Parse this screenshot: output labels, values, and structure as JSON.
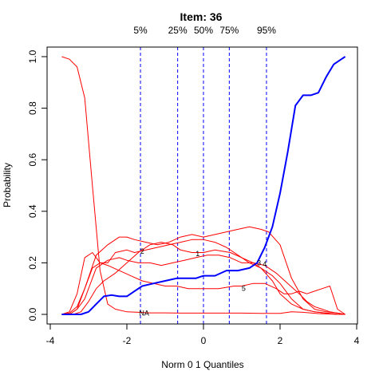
{
  "chart_data": {
    "type": "line",
    "title": "Item:  36",
    "xlabel": "Norm 0 1 Quantiles",
    "ylabel": "Probability",
    "xlim": [
      -4,
      4
    ],
    "ylim": [
      0,
      1
    ],
    "xticks": [
      "-4",
      "-2",
      "0",
      "2",
      "4"
    ],
    "yticks": [
      "0.0",
      "0.2",
      "0.4",
      "0.6",
      "0.8",
      "1.0"
    ],
    "quantiles": [
      {
        "label": "5%",
        "x": -1.645
      },
      {
        "label": "25%",
        "x": -0.674
      },
      {
        "label": "50%",
        "x": 0
      },
      {
        "label": "75%",
        "x": 0.674
      },
      {
        "label": "95%",
        "x": 1.645
      }
    ],
    "colors": {
      "distractor": "#ff0000",
      "key": "#0000ff",
      "quantile_line": "#0000ff"
    },
    "series": [
      {
        "name": "NA",
        "label_at": [
          -1.55,
          0.005
        ],
        "key": false,
        "x": [
          -3.7,
          -3.5,
          -3.3,
          -3.1,
          -2.9,
          -2.7,
          -2.5,
          -2.3,
          -2.0,
          -1.7,
          -1.4,
          -1.0,
          -0.6,
          0,
          0.5,
          1.0,
          1.5,
          2.0,
          2.3,
          2.6,
          3.0,
          3.4,
          3.7
        ],
        "y": [
          1.0,
          0.99,
          0.96,
          0.84,
          0.5,
          0.17,
          0.04,
          0.02,
          0.01,
          0.008,
          0.006,
          0.006,
          0.005,
          0.005,
          0.005,
          0.005,
          0.004,
          0.004,
          0.01,
          0.008,
          0.003,
          0.001,
          0.0
        ]
      },
      {
        "name": "1",
        "label_at": [
          -0.15,
          0.235
        ],
        "key": false,
        "x": [
          -3.7,
          -3.4,
          -3.2,
          -3.0,
          -2.8,
          -2.6,
          -2.3,
          -2.0,
          -1.7,
          -1.4,
          -1.1,
          -0.8,
          -0.6,
          -0.3,
          0,
          0.3,
          0.7,
          1.0,
          1.3,
          1.5,
          1.8,
          2.0,
          2.3,
          2.6,
          2.9,
          3.2,
          3.5,
          3.7
        ],
        "y": [
          0.0,
          0.0,
          0.01,
          0.05,
          0.1,
          0.13,
          0.16,
          0.2,
          0.24,
          0.27,
          0.28,
          0.27,
          0.25,
          0.24,
          0.24,
          0.25,
          0.24,
          0.22,
          0.2,
          0.18,
          0.15,
          0.12,
          0.06,
          0.02,
          0.01,
          0.005,
          0.0,
          0.0
        ]
      },
      {
        "name": "2",
        "label_at": [
          -1.6,
          0.245
        ],
        "key": false,
        "x": [
          -3.7,
          -3.5,
          -3.3,
          -3.1,
          -2.9,
          -2.7,
          -2.5,
          -2.3,
          -2.0,
          -1.8,
          -1.5,
          -1.2,
          -0.9,
          -0.6,
          -0.3,
          0,
          0.3,
          0.6,
          0.9,
          1.2,
          1.5,
          1.8,
          2.0,
          2.3,
          2.6,
          2.9,
          3.2,
          3.5,
          3.7
        ],
        "y": [
          0.0,
          0.01,
          0.08,
          0.22,
          0.24,
          0.2,
          0.2,
          0.24,
          0.25,
          0.24,
          0.25,
          0.26,
          0.27,
          0.28,
          0.29,
          0.29,
          0.28,
          0.26,
          0.23,
          0.2,
          0.18,
          0.13,
          0.08,
          0.04,
          0.02,
          0.01,
          0.005,
          0.0,
          0.0
        ]
      },
      {
        "name": "3",
        "label_at": [
          1.45,
          0.2
        ],
        "key": false,
        "x": [
          -3.7,
          -3.5,
          -3.3,
          -3.1,
          -2.8,
          -2.5,
          -2.2,
          -2.0,
          -1.8,
          -1.5,
          -1.2,
          -0.9,
          -0.6,
          -0.3,
          0,
          0.3,
          0.6,
          0.9,
          1.2,
          1.5,
          1.7,
          2.0,
          2.3,
          2.6,
          2.9,
          3.2,
          3.5,
          3.7
        ],
        "y": [
          0.0,
          0.005,
          0.03,
          0.1,
          0.23,
          0.27,
          0.3,
          0.3,
          0.29,
          0.28,
          0.27,
          0.28,
          0.3,
          0.31,
          0.3,
          0.31,
          0.32,
          0.33,
          0.34,
          0.33,
          0.32,
          0.27,
          0.14,
          0.06,
          0.02,
          0.01,
          0.005,
          0.0
        ]
      },
      {
        "name": "4",
        "label_at": [
          1.6,
          0.195
        ],
        "key": false,
        "x": [
          -3.7,
          -3.5,
          -3.3,
          -3.1,
          -2.8,
          -2.5,
          -2.2,
          -2.0,
          -1.7,
          -1.4,
          -1.1,
          -0.8,
          -0.5,
          -0.2,
          0.1,
          0.4,
          0.7,
          1.0,
          1.3,
          1.6,
          1.9,
          2.2,
          2.5,
          2.7,
          2.9,
          3.1,
          3.3,
          3.5,
          3.7
        ],
        "y": [
          0.0,
          0.0,
          0.02,
          0.06,
          0.18,
          0.21,
          0.22,
          0.21,
          0.2,
          0.2,
          0.19,
          0.2,
          0.21,
          0.22,
          0.23,
          0.23,
          0.22,
          0.2,
          0.2,
          0.19,
          0.16,
          0.12,
          0.08,
          0.05,
          0.03,
          0.02,
          0.01,
          0.005,
          0.0
        ]
      },
      {
        "name": "5",
        "label_at": [
          1.05,
          0.1
        ],
        "key": false,
        "x": [
          -3.7,
          -3.5,
          -3.3,
          -3.1,
          -2.9,
          -2.7,
          -2.5,
          -2.2,
          -1.9,
          -1.6,
          -1.3,
          -1.0,
          -0.7,
          -0.4,
          0,
          0.4,
          0.8,
          1.0,
          1.3,
          1.6,
          1.9,
          2.1,
          2.3,
          2.5,
          2.7,
          2.9,
          3.1,
          3.3,
          3.5,
          3.7
        ],
        "y": [
          0.0,
          0.0,
          0.02,
          0.1,
          0.18,
          0.2,
          0.19,
          0.17,
          0.15,
          0.13,
          0.12,
          0.11,
          0.11,
          0.1,
          0.1,
          0.1,
          0.11,
          0.11,
          0.12,
          0.12,
          0.1,
          0.08,
          0.08,
          0.09,
          0.08,
          0.09,
          0.1,
          0.11,
          0.02,
          0.0
        ]
      },
      {
        "name": "key",
        "key": true,
        "x": [
          -3.7,
          -3.4,
          -3.2,
          -3.0,
          -2.8,
          -2.6,
          -2.4,
          -2.2,
          -2.0,
          -1.8,
          -1.6,
          -1.3,
          -1.0,
          -0.7,
          -0.4,
          -0.2,
          0,
          0.3,
          0.6,
          0.9,
          1.2,
          1.4,
          1.6,
          1.8,
          2.0,
          2.2,
          2.4,
          2.6,
          2.8,
          3.0,
          3.2,
          3.4,
          3.6,
          3.7
        ],
        "y": [
          0.0,
          0.0,
          0.0,
          0.01,
          0.04,
          0.07,
          0.075,
          0.07,
          0.07,
          0.09,
          0.11,
          0.12,
          0.13,
          0.14,
          0.14,
          0.14,
          0.15,
          0.15,
          0.17,
          0.17,
          0.18,
          0.2,
          0.26,
          0.34,
          0.47,
          0.63,
          0.81,
          0.85,
          0.85,
          0.86,
          0.92,
          0.97,
          0.99,
          1.0
        ]
      }
    ]
  }
}
